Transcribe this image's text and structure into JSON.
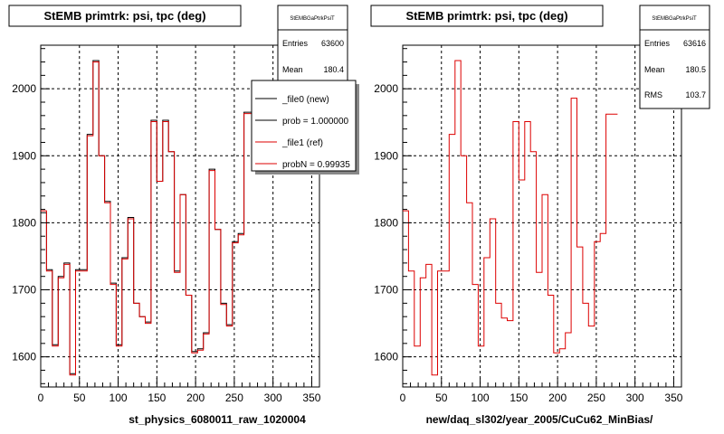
{
  "chart_data": [
    {
      "type": "histogram",
      "title": "StEMB primtrk: psi, tpc (deg)",
      "xlabel": "st_physics_6080011_raw_1020004",
      "xlim": [
        0,
        360
      ],
      "ylim": [
        1555,
        2065
      ],
      "xticks": [
        "0",
        "50",
        "100",
        "150",
        "200",
        "250",
        "300",
        "350"
      ],
      "yticks": [
        "1600",
        "1700",
        "1800",
        "1900",
        "2000"
      ],
      "grid": true,
      "bin_width": 7.5,
      "stats": {
        "name": "StEMBGaPtrkPsiT",
        "entries_label": "Entries",
        "entries": "63600",
        "mean_label": "Mean",
        "mean": "180.4"
      },
      "legend": {
        "placement": "top-right",
        "entries": [
          "_file0 (new)",
          "prob = 1.000000",
          "_file1 (ref)",
          "probN = 0.99935"
        ],
        "colors": [
          "#000000",
          "#000000",
          "#dd0000",
          "#dd0000"
        ]
      },
      "series": [
        {
          "name": "_file0 (new)",
          "color": "#000000",
          "values": [
            1815,
            1730,
            1618,
            1720,
            1740,
            1575,
            1730,
            1730,
            1932,
            2042,
            1900,
            1832,
            1710,
            1618,
            1748,
            1808,
            1680,
            1660,
            1652,
            1953,
            1862,
            1953,
            1906,
            1728,
            1842,
            1692,
            1608,
            1612,
            1636,
            1880,
            1790,
            1680,
            1648,
            1772,
            1784,
            1965,
            1965
          ]
        },
        {
          "name": "_file1 (ref)",
          "color": "#dd0000",
          "values": [
            1818,
            1728,
            1616,
            1718,
            1738,
            1573,
            1728,
            1728,
            1930,
            2040,
            1900,
            1830,
            1708,
            1616,
            1746,
            1806,
            1680,
            1660,
            1650,
            1951,
            1862,
            1951,
            1906,
            1726,
            1842,
            1692,
            1606,
            1610,
            1634,
            1878,
            1790,
            1678,
            1646,
            1770,
            1782,
            1963,
            1963
          ]
        }
      ]
    },
    {
      "type": "histogram",
      "title": "StEMB primtrk: psi, tpc (deg)",
      "xlabel": "new/daq_sl302/year_2005/CuCu62_MinBias/",
      "xlim": [
        0,
        360
      ],
      "ylim": [
        1555,
        2065
      ],
      "xticks": [
        "0",
        "50",
        "100",
        "150",
        "200",
        "250",
        "300",
        "350"
      ],
      "yticks": [
        "1600",
        "1700",
        "1800",
        "1900",
        "2000"
      ],
      "grid": true,
      "bin_width": 7.5,
      "stats": {
        "name": "StEMBGaPtrkPsiT",
        "entries_label": "Entries",
        "entries": "63616",
        "mean_label": "Mean",
        "mean": "180.5",
        "rms_label": "RMS",
        "rms": "103.7"
      },
      "series": [
        {
          "name": "",
          "color": "#dd0000",
          "values": [
            1818,
            1728,
            1616,
            1718,
            1738,
            1573,
            1728,
            1728,
            1932,
            2042,
            1900,
            1830,
            1708,
            1616,
            1748,
            1806,
            1680,
            1658,
            1654,
            1951,
            1864,
            1951,
            1906,
            1726,
            1842,
            1692,
            1606,
            1612,
            1636,
            1986,
            1764,
            1680,
            1646,
            1772,
            1784,
            1962,
            1962
          ]
        }
      ]
    }
  ]
}
